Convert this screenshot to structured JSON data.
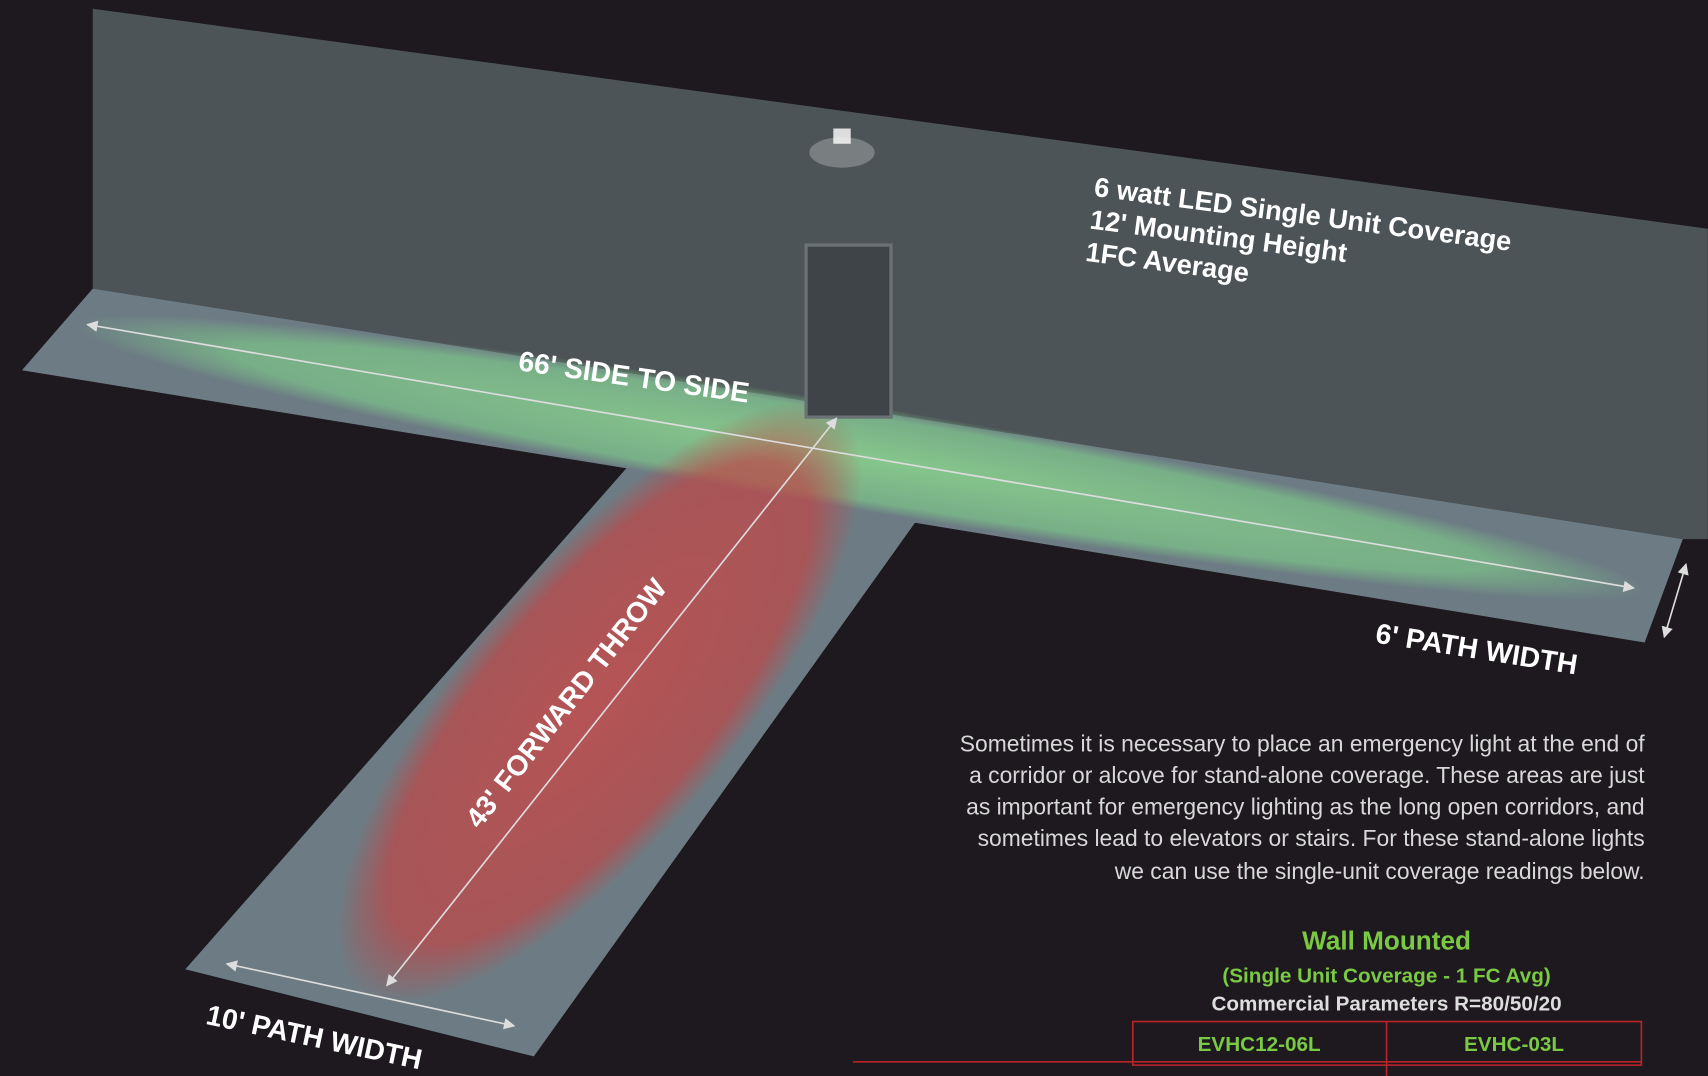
{
  "diagram": {
    "spec_lines": [
      "6 watt LED Single Unit Coverage",
      "12' Mounting Height",
      "1FC Average"
    ],
    "side_label": "66' SIDE TO SIDE",
    "throw_label": "43' FORWARD THROW",
    "path_width_right": "6' PATH WIDTH",
    "path_width_left": "10' PATH WIDTH"
  },
  "paragraph": {
    "lines": [
      "Sometimes it is necessary to place an emergency light at the end of",
      "a corridor or alcove for stand-alone coverage. These areas are just",
      "as important for emergency lighting as the long open corridors, and",
      "sometimes lead to elevators or stairs. For these stand-alone lights",
      "we can use the single-unit coverage readings below."
    ]
  },
  "table": {
    "title": "Wall Mounted",
    "subtitle": "(Single Unit Coverage - 1 FC Avg)",
    "parameters": "Commercial Parameters R=80/50/20",
    "columns": [
      "EVHC12-06L",
      "EVHC-03L"
    ]
  }
}
